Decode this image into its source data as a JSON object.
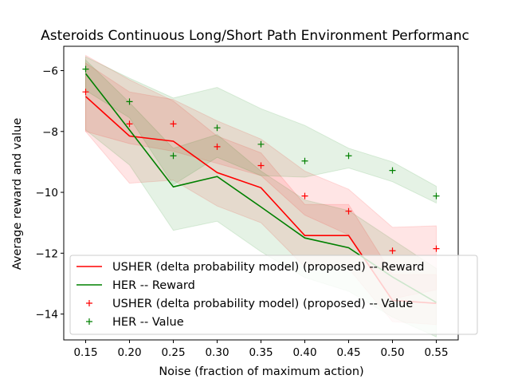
{
  "chart_data": {
    "type": "line",
    "title": "Asteroids Continuous Long/Short Path Environment Performanc",
    "xlabel": "Noise (fraction of maximum action)",
    "ylabel": "Average reward and value",
    "xlim": [
      0.125,
      0.575
    ],
    "ylim": [
      -14.85,
      -5.2
    ],
    "grid": false,
    "legend_position": "lower-left",
    "x": [
      0.15,
      0.2,
      0.25,
      0.3,
      0.35,
      0.4,
      0.45,
      0.5,
      0.55
    ],
    "x_tick_labels": [
      "0.15",
      "0.20",
      "0.25",
      "0.30",
      "0.35",
      "0.40",
      "0.45",
      "0.50",
      "0.55"
    ],
    "y_ticks": [
      -14,
      -12,
      -10,
      -8,
      -6
    ],
    "y_tick_labels": [
      "−14",
      "−12",
      "−10",
      "−8",
      "−6"
    ],
    "series": [
      {
        "name": "USHER (delta probability model) (proposed) -- Reward",
        "kind": "line",
        "color": "#ff0000",
        "values": [
          -6.85,
          -8.15,
          -8.32,
          -9.35,
          -9.85,
          -11.42,
          -11.42,
          -13.55,
          -13.65
        ],
        "band_low": [
          -8.0,
          -9.7,
          -9.6,
          -10.45,
          -11.0,
          -12.45,
          -12.5,
          -14.25,
          -14.35
        ],
        "band_high": [
          -5.5,
          -6.3,
          -7.0,
          -8.15,
          -8.7,
          -10.4,
          -10.4,
          -12.7,
          -12.7
        ]
      },
      {
        "name": "HER -- Reward",
        "kind": "line",
        "color": "#008000",
        "values": [
          -6.1,
          -7.95,
          -9.82,
          -9.48,
          -10.48,
          -11.5,
          -11.82,
          -12.78,
          -13.62
        ],
        "band_low": [
          -7.95,
          -9.1,
          -11.25,
          -10.95,
          -11.95,
          -12.8,
          -13.25,
          -14.1,
          -14.75
        ],
        "band_high": [
          -5.65,
          -7.05,
          -8.55,
          -8.1,
          -9.3,
          -10.25,
          -10.6,
          -11.55,
          -12.5
        ]
      },
      {
        "name": "USHER (delta probability model) (proposed) -- Value",
        "kind": "markers",
        "color": "#ff0000",
        "values": [
          -6.7,
          -7.75,
          -7.75,
          -8.5,
          -9.12,
          -10.12,
          -10.62,
          -11.92,
          -11.85
        ],
        "band_low": [
          -8.0,
          -8.4,
          -8.65,
          -9.05,
          -9.45,
          -10.75,
          -11.4,
          -13.5,
          -13.2
        ],
        "band_high": [
          -5.75,
          -6.7,
          -6.95,
          -7.65,
          -8.25,
          -9.3,
          -9.9,
          -11.15,
          -11.1
        ]
      },
      {
        "name": "HER -- Value",
        "kind": "markers",
        "color": "#008000",
        "values": [
          -5.95,
          -7.02,
          -8.8,
          -7.88,
          -8.42,
          -8.97,
          -8.8,
          -9.28,
          -10.12
        ],
        "band_low": [
          -6.65,
          -7.55,
          -9.75,
          -8.85,
          -9.45,
          -9.5,
          -9.2,
          -9.65,
          -10.35
        ],
        "band_high": [
          -5.55,
          -6.25,
          -6.9,
          -6.55,
          -7.25,
          -7.8,
          -8.55,
          -9.0,
          -9.8
        ]
      }
    ]
  }
}
